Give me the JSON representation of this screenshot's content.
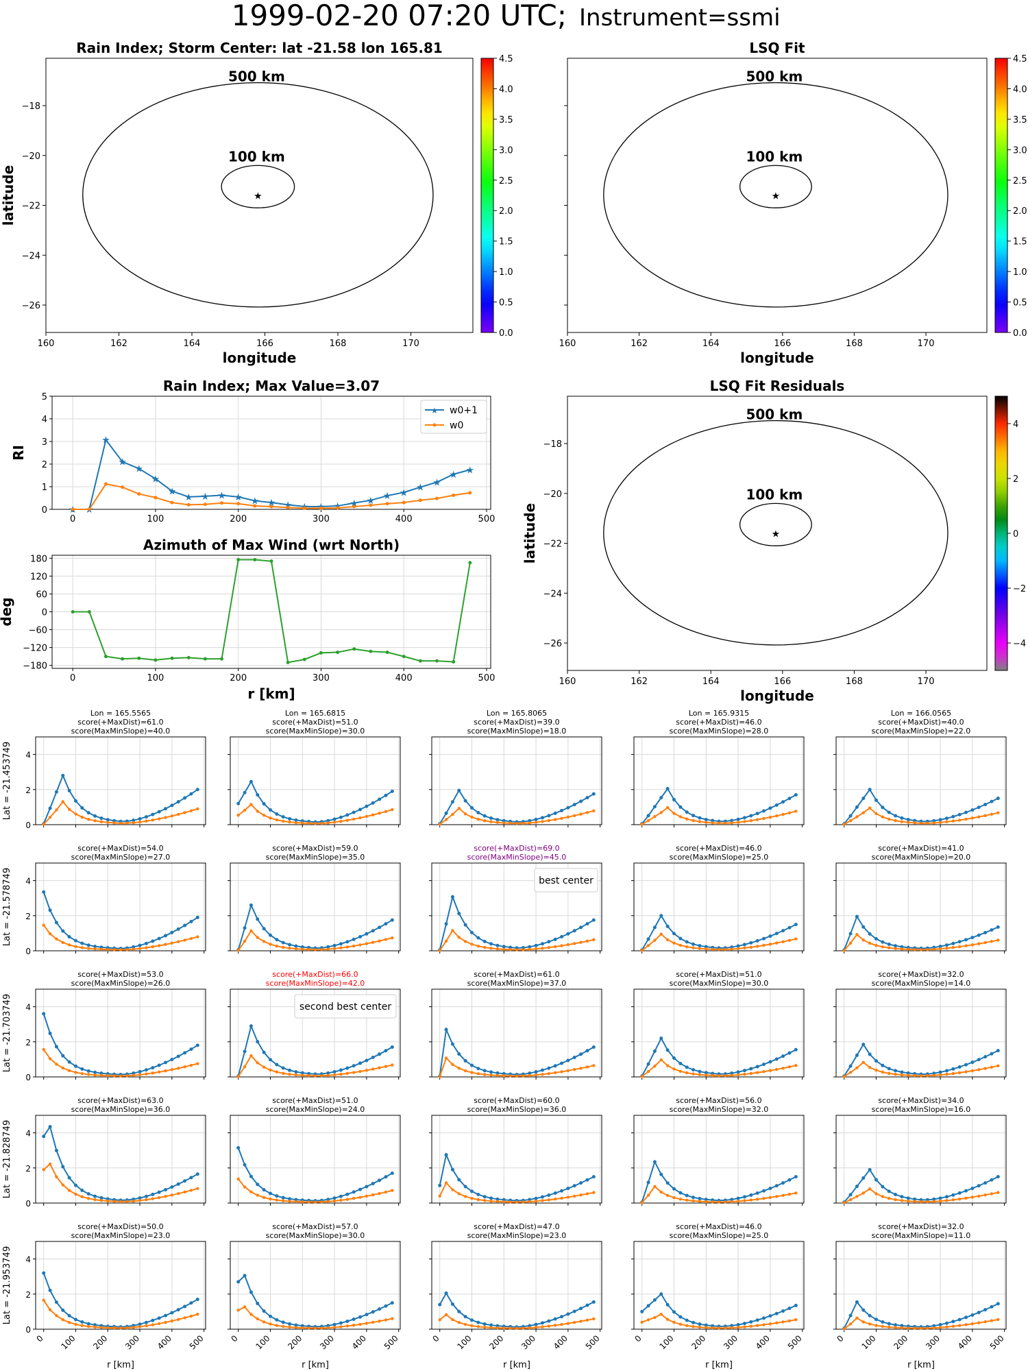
{
  "figure": {
    "title_main": "1999-02-20 07:20 UTC;",
    "title_sub": "Instrument=ssmi"
  },
  "colors": {
    "blue": "#1f77b4",
    "orange": "#ff7f0e",
    "green": "#2ca02c",
    "best": "#800080",
    "second": "#ff0000",
    "grid": "#d9d9d9"
  },
  "chart_data": [
    {
      "type": "heatmap",
      "name": "rain-index-map",
      "title": "Rain Index; Storm Center: lat -21.58 lon 165.81",
      "xlabel": "longitude",
      "ylabel": "latitude",
      "xlim": [
        160,
        171.7
      ],
      "ylim": [
        -27.1,
        -16.1
      ],
      "xticks": [
        "160",
        "162",
        "164",
        "166",
        "168",
        "170"
      ],
      "yticks": [
        "-26",
        "-24",
        "-22",
        "-20",
        "-18"
      ],
      "center": {
        "lon": 165.81,
        "lat": -21.58
      },
      "rings": [
        "500 km",
        "100 km"
      ],
      "colorbar": {
        "range": [
          0,
          4.5
        ],
        "ticks": [
          "0.0",
          "0.5",
          "1.0",
          "1.5",
          "2.0",
          "2.5",
          "3.0",
          "3.5",
          "4.0",
          "4.5"
        ],
        "colormap": "rainbow"
      }
    },
    {
      "type": "heatmap",
      "name": "lsq-fit-map",
      "title": "LSQ Fit",
      "xlabel": "longitude",
      "xlim": [
        160,
        171.7
      ],
      "ylim": [
        -27.1,
        -16.1
      ],
      "xticks": [
        "160",
        "162",
        "164",
        "166",
        "168",
        "170"
      ],
      "rings": [
        "500 km",
        "100 km"
      ],
      "colorbar": {
        "range": [
          0,
          4.5
        ],
        "ticks": [
          "0.0",
          "0.5",
          "1.0",
          "1.5",
          "2.0",
          "2.5",
          "3.0",
          "3.5",
          "4.0",
          "4.5"
        ],
        "colormap": "rainbow"
      }
    },
    {
      "type": "line",
      "name": "rain-index-profile",
      "title": "Rain Index; Max Value=3.07",
      "ylabel": "RI",
      "xlim": [
        -25,
        505
      ],
      "ylim": [
        0,
        5
      ],
      "xticks": [
        "0",
        "100",
        "200",
        "300",
        "400",
        "500"
      ],
      "yticks": [
        "0",
        "1",
        "2",
        "3",
        "4",
        "5"
      ],
      "legend": "top-right",
      "x": [
        0,
        20,
        40,
        60,
        80,
        100,
        120,
        140,
        160,
        180,
        200,
        220,
        240,
        260,
        280,
        300,
        320,
        340,
        360,
        380,
        400,
        420,
        440,
        460,
        480
      ],
      "series": [
        {
          "name": "w0+1",
          "marker": "star",
          "values": [
            0,
            0,
            3.07,
            2.1,
            1.8,
            1.35,
            0.8,
            0.55,
            0.58,
            0.62,
            0.55,
            0.38,
            0.3,
            0.2,
            0.12,
            0.12,
            0.15,
            0.28,
            0.4,
            0.6,
            0.75,
            0.98,
            1.2,
            1.55,
            1.75
          ]
        },
        {
          "name": "w0",
          "marker": "dot",
          "values": [
            0,
            0,
            1.12,
            0.98,
            0.68,
            0.52,
            0.3,
            0.2,
            0.22,
            0.28,
            0.25,
            0.15,
            0.12,
            0.08,
            0.05,
            0.05,
            0.06,
            0.12,
            0.18,
            0.25,
            0.3,
            0.4,
            0.48,
            0.62,
            0.73
          ]
        }
      ]
    },
    {
      "type": "line",
      "name": "azimuth-profile",
      "title": "Azimuth of Max Wind (wrt North)",
      "xlabel": "r [km]",
      "ylabel": "deg",
      "xlim": [
        -25,
        505
      ],
      "ylim": [
        -190,
        190
      ],
      "xticks": [
        "0",
        "100",
        "200",
        "300",
        "400",
        "500"
      ],
      "yticks": [
        "-180",
        "-120",
        "-60",
        "0",
        "60",
        "120",
        "180"
      ],
      "x": [
        0,
        20,
        40,
        60,
        80,
        100,
        120,
        140,
        160,
        180,
        200,
        220,
        240,
        260,
        280,
        300,
        320,
        340,
        360,
        380,
        400,
        420,
        440,
        460,
        480
      ],
      "series": [
        {
          "values": [
            0,
            0,
            -150,
            -158,
            -156,
            -162,
            -156,
            -154,
            -158,
            -158,
            175,
            175,
            170,
            -170,
            -160,
            -138,
            -136,
            -125,
            -133,
            -136,
            -150,
            -165,
            -165,
            -168,
            165
          ]
        }
      ]
    },
    {
      "type": "heatmap",
      "name": "lsq-residuals-map",
      "title": "LSQ Fit Residuals",
      "xlabel": "longitude",
      "ylabel": "latitude",
      "xlim": [
        160,
        171.7
      ],
      "ylim": [
        -27.1,
        -16.1
      ],
      "xticks": [
        "160",
        "162",
        "164",
        "166",
        "168",
        "170"
      ],
      "yticks": [
        "-26",
        "-24",
        "-22",
        "-20",
        "-18"
      ],
      "rings": [
        "500 km",
        "100 km"
      ],
      "colorbar": {
        "range": [
          -5,
          5
        ],
        "ticks": [
          "−4",
          "−2",
          "0",
          "2",
          "4"
        ],
        "colormap": "diverging"
      }
    },
    {
      "type": "line",
      "name": "grid-profiles",
      "x": [
        0,
        20,
        40,
        60,
        80,
        100,
        120,
        140,
        160,
        180,
        200,
        220,
        240,
        260,
        280,
        300,
        320,
        340,
        360,
        380,
        400,
        420,
        440,
        460,
        480
      ],
      "xlim": [
        -25,
        505
      ],
      "ylim": [
        0,
        5
      ],
      "xlabel": "r [km]",
      "xticks": [
        "0",
        "100",
        "200",
        "300",
        "400",
        "500"
      ],
      "yticks": [
        "0",
        "2",
        "4"
      ],
      "row_labels": [
        "Lat = -21.453749",
        "Lat = -21.578749",
        "Lat = -21.703749",
        "Lat = -21.828749",
        "Lat = -21.953749"
      ],
      "col_labels": [
        "Lon = 165.5565",
        "Lon = 165.6815",
        "Lon = 165.8065",
        "Lon = 165.9315",
        "Lon = 166.0565"
      ],
      "cells": [
        [
          {
            "maxdist": "score(+MaxDist)=61.0",
            "slope": "score(MaxMinSlope)=40.0",
            "peak": 2.8,
            "peakIdx": 3,
            "early": 0.0,
            "tail": 2.0,
            "ratio": 0.45
          },
          {
            "maxdist": "score(+MaxDist)=51.0",
            "slope": "score(MaxMinSlope)=30.0",
            "peak": 2.45,
            "peakIdx": 2,
            "early": 1.2,
            "tail": 1.9,
            "ratio": 0.45
          },
          {
            "maxdist": "score(+MaxDist)=39.0",
            "slope": "score(MaxMinSlope)=18.0",
            "peak": 1.95,
            "peakIdx": 3,
            "early": 0.0,
            "tail": 1.75,
            "ratio": 0.45
          },
          {
            "maxdist": "score(+MaxDist)=46.0",
            "slope": "score(MaxMinSlope)=28.0",
            "peak": 2.05,
            "peakIdx": 4,
            "early": 0.0,
            "tail": 1.7,
            "ratio": 0.45
          },
          {
            "maxdist": "score(+MaxDist)=40.0",
            "slope": "score(MaxMinSlope)=22.0",
            "peak": 2.0,
            "peakIdx": 4,
            "early": 0.0,
            "tail": 1.5,
            "ratio": 0.45
          }
        ],
        [
          {
            "maxdist": "score(+MaxDist)=54.0",
            "slope": "score(MaxMinSlope)=27.0",
            "peak": 3.35,
            "peakIdx": 0,
            "early": 0.0,
            "tail": 1.9,
            "ratio": 0.42
          },
          {
            "maxdist": "score(+MaxDist)=59.0",
            "slope": "score(MaxMinSlope)=35.0",
            "peak": 2.6,
            "peakIdx": 2,
            "early": 0.0,
            "tail": 1.75,
            "ratio": 0.42
          },
          {
            "maxdist": "score(+MaxDist)=69.0",
            "slope": "score(MaxMinSlope)=45.0",
            "peak": 3.07,
            "peakIdx": 2,
            "early": 0.0,
            "tail": 1.75,
            "ratio": 0.36,
            "highlight": "best",
            "note": "best center"
          },
          {
            "maxdist": "score(+MaxDist)=46.0",
            "slope": "score(MaxMinSlope)=25.0",
            "peak": 2.0,
            "peakIdx": 3,
            "early": 0.0,
            "tail": 1.5,
            "ratio": 0.45
          },
          {
            "maxdist": "score(+MaxDist)=41.0",
            "slope": "score(MaxMinSlope)=20.0",
            "peak": 1.95,
            "peakIdx": 2,
            "early": 0.0,
            "tail": 1.35,
            "ratio": 0.45
          }
        ],
        [
          {
            "maxdist": "score(+MaxDist)=53.0",
            "slope": "score(MaxMinSlope)=26.0",
            "peak": 3.6,
            "peakIdx": 0,
            "early": 0.0,
            "tail": 1.8,
            "ratio": 0.42
          },
          {
            "maxdist": "score(+MaxDist)=66.0",
            "slope": "score(MaxMinSlope)=42.0",
            "peak": 2.9,
            "peakIdx": 2,
            "early": 0.0,
            "tail": 1.7,
            "ratio": 0.4,
            "highlight": "second",
            "note": "second best center"
          },
          {
            "maxdist": "score(+MaxDist)=61.0",
            "slope": "score(MaxMinSlope)=37.0",
            "peak": 2.7,
            "peakIdx": 1,
            "early": 0.0,
            "tail": 1.7,
            "ratio": 0.38
          },
          {
            "maxdist": "score(+MaxDist)=51.0",
            "slope": "score(MaxMinSlope)=30.0",
            "peak": 2.2,
            "peakIdx": 3,
            "early": 0.0,
            "tail": 1.55,
            "ratio": 0.42
          },
          {
            "maxdist": "score(+MaxDist)=32.0",
            "slope": "score(MaxMinSlope)=14.0",
            "peak": 1.85,
            "peakIdx": 3,
            "early": 0.0,
            "tail": 1.5,
            "ratio": 0.42
          }
        ],
        [
          {
            "maxdist": "score(+MaxDist)=63.0",
            "slope": "score(MaxMinSlope)=36.0",
            "peak": 4.35,
            "peakIdx": 1,
            "early": 3.8,
            "tail": 1.65,
            "ratio": 0.5
          },
          {
            "maxdist": "score(+MaxDist)=51.0",
            "slope": "score(MaxMinSlope)=24.0",
            "peak": 3.15,
            "peakIdx": 0,
            "early": 0.0,
            "tail": 1.7,
            "ratio": 0.42
          },
          {
            "maxdist": "score(+MaxDist)=60.0",
            "slope": "score(MaxMinSlope)=36.0",
            "peak": 2.75,
            "peakIdx": 1,
            "early": 1.0,
            "tail": 1.5,
            "ratio": 0.4
          },
          {
            "maxdist": "score(+MaxDist)=56.0",
            "slope": "score(MaxMinSlope)=32.0",
            "peak": 2.35,
            "peakIdx": 2,
            "early": 0.0,
            "tail": 1.5,
            "ratio": 0.38
          },
          {
            "maxdist": "score(+MaxDist)=34.0",
            "slope": "score(MaxMinSlope)=16.0",
            "peak": 1.9,
            "peakIdx": 4,
            "early": 0.0,
            "tail": 1.5,
            "ratio": 0.4
          }
        ],
        [
          {
            "maxdist": "score(+MaxDist)=50.0",
            "slope": "score(MaxMinSlope)=23.0",
            "peak": 3.2,
            "peakIdx": 0,
            "early": 0.0,
            "tail": 1.7,
            "ratio": 0.5
          },
          {
            "maxdist": "score(+MaxDist)=57.0",
            "slope": "score(MaxMinSlope)=30.0",
            "peak": 3.05,
            "peakIdx": 1,
            "early": 2.7,
            "tail": 1.5,
            "ratio": 0.4
          },
          {
            "maxdist": "score(+MaxDist)=47.0",
            "slope": "score(MaxMinSlope)=23.0",
            "peak": 2.05,
            "peakIdx": 1,
            "early": 1.4,
            "tail": 1.55,
            "ratio": 0.38
          },
          {
            "maxdist": "score(+MaxDist)=46.0",
            "slope": "score(MaxMinSlope)=25.0",
            "peak": 2.0,
            "peakIdx": 3,
            "early": 1.0,
            "tail": 1.35,
            "ratio": 0.4
          },
          {
            "maxdist": "score(+MaxDist)=32.0",
            "slope": "score(MaxMinSlope)=11.0",
            "peak": 1.55,
            "peakIdx": 2,
            "early": 0.0,
            "tail": 1.45,
            "ratio": 0.38
          }
        ]
      ]
    }
  ]
}
